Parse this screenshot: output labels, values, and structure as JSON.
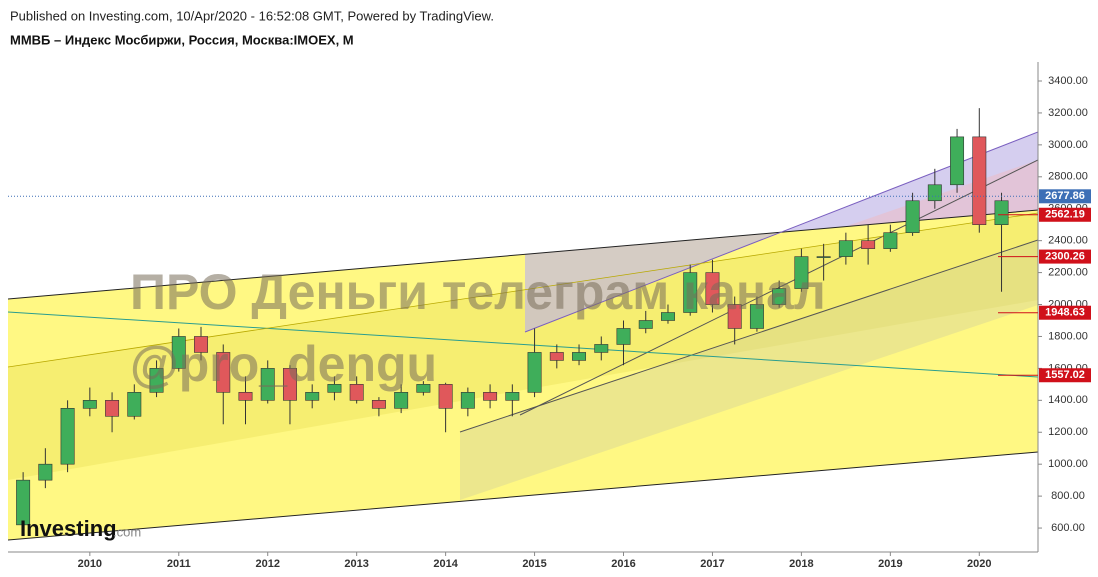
{
  "chart_data": {
    "type": "candlestick",
    "header": "Published on Investing.com, 10/Apr/2020 - 16:52:08 GMT, Powered by TradingView.",
    "title": "ММВБ – Индекс Мосбиржи, Россия, Москва:IMOEX, M",
    "watermark": [
      "ПРО Деньги телеграм канал",
      "@pro_dengu"
    ],
    "logo": [
      "Investing",
      ".com"
    ],
    "x": [
      2009.25,
      2009.5,
      2009.75,
      2010.0,
      2010.25,
      2010.5,
      2010.75,
      2011.0,
      2011.25,
      2011.5,
      2011.75,
      2012.0,
      2012.25,
      2012.5,
      2012.75,
      2013.0,
      2013.25,
      2013.5,
      2013.75,
      2014.0,
      2014.25,
      2014.5,
      2014.75,
      2015.0,
      2015.25,
      2015.5,
      2015.75,
      2016.0,
      2016.25,
      2016.5,
      2016.75,
      2017.0,
      2017.25,
      2017.5,
      2017.75,
      2018.0,
      2018.25,
      2018.5,
      2018.75,
      2019.0,
      2019.25,
      2019.5,
      2019.75,
      2020.0,
      2020.25
    ],
    "open": [
      620,
      900,
      1000,
      1350,
      1400,
      1300,
      1450,
      1600,
      1800,
      1700,
      1450,
      1400,
      1600,
      1400,
      1450,
      1500,
      1400,
      1350,
      1450,
      1500,
      1350,
      1450,
      1400,
      1450,
      1700,
      1650,
      1700,
      1750,
      1850,
      1900,
      1950,
      2200,
      2000,
      1850,
      2000,
      2100,
      2300,
      2300,
      2400,
      2350,
      2450,
      2650,
      2750,
      3050,
      2500
    ],
    "high": [
      950,
      1100,
      1400,
      1480,
      1450,
      1500,
      1650,
      1850,
      1860,
      1750,
      1550,
      1650,
      1620,
      1500,
      1550,
      1550,
      1420,
      1500,
      1520,
      1510,
      1480,
      1500,
      1500,
      1850,
      1750,
      1750,
      1800,
      1900,
      1960,
      2000,
      2250,
      2280,
      2050,
      2050,
      2150,
      2350,
      2380,
      2450,
      2500,
      2500,
      2700,
      2850,
      3100,
      3230,
      2700
    ],
    "low": [
      600,
      850,
      950,
      1300,
      1200,
      1280,
      1420,
      1580,
      1650,
      1250,
      1250,
      1380,
      1250,
      1350,
      1400,
      1380,
      1300,
      1320,
      1430,
      1200,
      1300,
      1350,
      1300,
      1420,
      1600,
      1620,
      1650,
      1620,
      1820,
      1880,
      1930,
      1950,
      1750,
      1830,
      1980,
      2080,
      2150,
      2250,
      2250,
      2330,
      2430,
      2600,
      2700,
      2450,
      2080
    ],
    "close": [
      900,
      1000,
      1350,
      1400,
      1300,
      1450,
      1600,
      1800,
      1700,
      1450,
      1400,
      1600,
      1400,
      1450,
      1500,
      1400,
      1350,
      1450,
      1500,
      1350,
      1450,
      1400,
      1450,
      1700,
      1650,
      1700,
      1750,
      1850,
      1900,
      1950,
      2200,
      2000,
      1850,
      2000,
      2100,
      2300,
      2300,
      2400,
      2350,
      2450,
      2650,
      2750,
      3050,
      2500,
      2650
    ],
    "up_color": "#3fae5a",
    "down_color": "#e0585b",
    "xlim": [
      2009.08,
      2020.66
    ],
    "xticks": [
      2010,
      2011,
      2012,
      2013,
      2014,
      2015,
      2016,
      2017,
      2018,
      2019,
      2020
    ],
    "ylim": [
      450,
      3519
    ],
    "yticks": [
      {
        "value": 600,
        "label": "600.00"
      },
      {
        "value": 800,
        "label": "800.00"
      },
      {
        "value": 1000,
        "label": "1000.00"
      },
      {
        "value": 1200,
        "label": "1200.00"
      },
      {
        "value": 1400,
        "label": "1400.00"
      },
      {
        "value": 1600,
        "label": "1600.00"
      },
      {
        "value": 1800,
        "label": "1800.00"
      },
      {
        "value": 2000,
        "label": "2000.00"
      },
      {
        "value": 2200,
        "label": "2200.00"
      },
      {
        "value": 2400,
        "label": "2400.00"
      },
      {
        "value": 2600,
        "label": "2600.00"
      },
      {
        "value": 2800,
        "label": "2800.00"
      },
      {
        "value": 3000,
        "label": "3000.00"
      },
      {
        "value": 3200,
        "label": "3200.00"
      },
      {
        "value": 3400,
        "label": "3400.00"
      }
    ],
    "price_labels": [
      {
        "value": 2677.86,
        "label": "2677.86",
        "color": "#3d6fb6"
      },
      {
        "value": 2562.19,
        "label": "2562.19",
        "color": "#d0101a"
      },
      {
        "value": 2300.26,
        "label": "2300.26",
        "color": "#d0101a"
      },
      {
        "value": 1948.63,
        "label": "1948.63",
        "color": "#d0101a"
      },
      {
        "value": 1557.02,
        "label": "1557.02",
        "color": "#d0101a"
      }
    ]
  }
}
